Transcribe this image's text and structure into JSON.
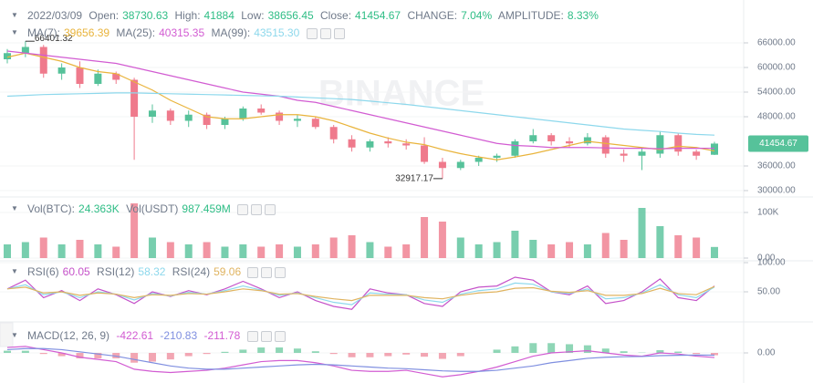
{
  "header": {
    "date": "2022/03/09",
    "open_label": "Open:",
    "high_label": "High:",
    "low_label": "Low:",
    "close_label": "Close:",
    "change_label": "CHANGE:",
    "change": "7.04%",
    "amplitude_label": "AMPLITUDE:",
    "amplitude": "8.33%"
  },
  "chart_data": [
    {
      "type": "candlestick",
      "watermark": "BINANCE",
      "up_color": "#56c29a",
      "down_color": "#ef7a8c",
      "open": [
        62000,
        63500,
        65000,
        58500,
        60000,
        56000,
        58500,
        57000,
        48000,
        49500,
        47000,
        48500,
        46000,
        47500,
        50000,
        49000,
        47000,
        47500,
        45500,
        42500,
        40500,
        42000,
        41500,
        41000,
        37000,
        35500,
        37000,
        38000,
        38500,
        42000,
        43500,
        42000,
        41500,
        43000,
        39000,
        38500,
        39000,
        43500,
        39500,
        38730.63
      ],
      "high": [
        64500,
        66401.32,
        65500,
        61000,
        61500,
        59500,
        59000,
        57500,
        51000,
        50000,
        49500,
        49000,
        48000,
        50500,
        51000,
        49500,
        48500,
        48000,
        46000,
        43500,
        42500,
        43000,
        42500,
        43000,
        38000,
        37500,
        38500,
        39000,
        42500,
        45000,
        44000,
        43000,
        44000,
        43500,
        40000,
        40500,
        44500,
        44000,
        40000,
        41884
      ],
      "low": [
        61000,
        62500,
        57500,
        57000,
        55000,
        55500,
        56000,
        37500,
        46500,
        46000,
        45500,
        45000,
        45000,
        47000,
        48500,
        46000,
        45500,
        45000,
        41500,
        39500,
        39500,
        40500,
        40000,
        36500,
        32917.17,
        35000,
        36000,
        37000,
        38000,
        41500,
        41000,
        40500,
        41000,
        38000,
        37000,
        35000,
        38000,
        38500,
        37500,
        38656.45
      ],
      "close": [
        63500,
        65000,
        58500,
        60000,
        56000,
        58500,
        57000,
        48000,
        49500,
        47000,
        48500,
        46000,
        47500,
        50000,
        49000,
        47000,
        47500,
        45500,
        42500,
        40500,
        42000,
        41500,
        41000,
        37000,
        35500,
        37000,
        38000,
        38500,
        42000,
        43500,
        42000,
        41500,
        43000,
        39000,
        38500,
        39500,
        43500,
        39500,
        38500,
        41454.67
      ],
      "ylim": [
        28667,
        74222
      ],
      "yticks": [
        {
          "value": 66000,
          "label": "66000.00"
        },
        {
          "value": 60000,
          "label": "60000.00"
        },
        {
          "value": 54000,
          "label": "54000.00"
        },
        {
          "value": 48000,
          "label": "48000.00"
        },
        {
          "value": 36000,
          "label": "36000.00"
        },
        {
          "value": 30000,
          "label": "30000.00"
        }
      ],
      "series": [
        {
          "name": "MA(7):",
          "color": "#e9b43c",
          "value_label": "39656.39",
          "values": [
            62500,
            63500,
            62500,
            61500,
            60000,
            59000,
            58500,
            56500,
            54500,
            52000,
            50000,
            48000,
            47500,
            47500,
            48000,
            48500,
            48500,
            48000,
            47000,
            45500,
            44000,
            42800,
            41800,
            41200,
            40000,
            39000,
            38200,
            37500,
            38200,
            39000,
            40000,
            41000,
            42000,
            41500,
            41000,
            40500,
            40000,
            40800,
            40500,
            39656.39
          ]
        },
        {
          "name": "MA(25):",
          "color": "#d25cd2",
          "value_label": "40315.35",
          "values": [
            64000,
            63500,
            63000,
            62500,
            62000,
            61500,
            61000,
            60000,
            59000,
            58000,
            57000,
            56000,
            55000,
            54000,
            53500,
            53000,
            52000,
            51500,
            50500,
            49500,
            48500,
            47500,
            46500,
            45500,
            44500,
            43500,
            42500,
            41500,
            41000,
            40800,
            40500,
            40500,
            40500,
            40400,
            40300,
            40300,
            40200,
            40300,
            40300,
            40315.35
          ]
        },
        {
          "name": "MA(99):",
          "color": "#8dd8ec",
          "value_label": "43515.30",
          "values": [
            53000,
            53200,
            53400,
            53500,
            53600,
            53700,
            53800,
            53800,
            53700,
            53600,
            53500,
            53400,
            53300,
            53200,
            53100,
            53000,
            52800,
            52600,
            52400,
            52200,
            51800,
            51400,
            51000,
            50500,
            50000,
            49500,
            49000,
            48500,
            48000,
            47500,
            47000,
            46500,
            46000,
            45500,
            45000,
            44700,
            44400,
            44000,
            43700,
            43515.3
          ]
        }
      ]
    },
    {
      "type": "bar",
      "name": "Vol(BTC):",
      "value_label": "24.363K",
      "extra_name": "Vol(USDT)",
      "extra_value": "987.459M",
      "values": [
        30000,
        35000,
        45000,
        30000,
        40000,
        30000,
        25000,
        120000,
        45000,
        35000,
        30000,
        35000,
        25000,
        30000,
        25000,
        30000,
        25000,
        30000,
        45000,
        50000,
        35000,
        25000,
        30000,
        90000,
        80000,
        45000,
        30000,
        35000,
        60000,
        40000,
        30000,
        35000,
        30000,
        55000,
        40000,
        110000,
        70000,
        50000,
        45000,
        24363
      ],
      "ylim": [
        0,
        126000
      ],
      "yticks": [
        {
          "value": 100000,
          "label": "100K"
        },
        {
          "value": 0,
          "label": "0.00"
        }
      ]
    },
    {
      "type": "line",
      "ylim": [
        0,
        100
      ],
      "yticks": [
        {
          "value": 100,
          "label": "100.00"
        },
        {
          "value": 50,
          "label": "50.00"
        }
      ],
      "series": [
        {
          "name": "RSI(6)",
          "color": "#c552c9",
          "values": [
            55,
            70,
            40,
            52,
            35,
            55,
            45,
            30,
            50,
            42,
            52,
            45,
            55,
            68,
            55,
            40,
            50,
            35,
            25,
            20,
            55,
            48,
            45,
            30,
            25,
            50,
            58,
            60,
            75,
            70,
            50,
            45,
            60,
            30,
            35,
            50,
            72,
            40,
            35,
            60.05
          ]
        },
        {
          "name": "RSI(12)",
          "color": "#8dd8ec",
          "values": [
            55,
            62,
            45,
            50,
            40,
            50,
            46,
            36,
            47,
            43,
            49,
            46,
            52,
            60,
            53,
            44,
            48,
            40,
            32,
            28,
            48,
            46,
            45,
            36,
            32,
            46,
            52,
            55,
            65,
            63,
            50,
            47,
            55,
            38,
            40,
            48,
            62,
            45,
            40,
            58.32
          ]
        },
        {
          "name": "RSI(24)",
          "color": "#e0b460",
          "values": [
            55,
            58,
            48,
            50,
            44,
            48,
            46,
            40,
            45,
            44,
            47,
            46,
            50,
            55,
            52,
            46,
            47,
            42,
            38,
            35,
            44,
            44,
            44,
            40,
            38,
            44,
            48,
            50,
            56,
            57,
            51,
            49,
            52,
            44,
            44,
            47,
            56,
            47,
            45,
            59.06
          ]
        }
      ]
    },
    {
      "type": "macd",
      "name": "MACD(12, 26, 9)",
      "up_color": "#8fd6b6",
      "down_color": "#f2a6b3",
      "ylim": [
        -2600,
        2600
      ],
      "yticks": [
        {
          "value": 0,
          "label": "0.00"
        }
      ],
      "values": [
        200,
        200,
        -100,
        -300,
        -500,
        -500,
        -500,
        -900,
        -800,
        -600,
        -300,
        -100,
        100,
        300,
        500,
        500,
        400,
        150,
        -100,
        -400,
        -400,
        -300,
        -150,
        -350,
        -550,
        -300,
        0,
        300,
        600,
        900,
        900,
        800,
        700,
        400,
        150,
        30,
        250,
        120,
        -100,
        -211.78
      ],
      "series": [
        {
          "color": "#d25cd2",
          "values": [
            500,
            600,
            300,
            0,
            -400,
            -600,
            -800,
            -1500,
            -1700,
            -1800,
            -1700,
            -1600,
            -1400,
            -1100,
            -800,
            -700,
            -700,
            -900,
            -1200,
            -1600,
            -1700,
            -1700,
            -1600,
            -1900,
            -2200,
            -2000,
            -1700,
            -1300,
            -800,
            -300,
            0,
            100,
            200,
            0,
            -200,
            -300,
            0,
            -100,
            -300,
            -422.61
          ]
        },
        {
          "color": "#7f8fe0",
          "values": [
            300,
            400,
            400,
            300,
            100,
            -100,
            -300,
            -600,
            -900,
            -1200,
            -1400,
            -1500,
            -1500,
            -1400,
            -1300,
            -1200,
            -1100,
            -1050,
            -1100,
            -1200,
            -1300,
            -1400,
            -1450,
            -1550,
            -1650,
            -1700,
            -1700,
            -1600,
            -1400,
            -1200,
            -900,
            -700,
            -500,
            -400,
            -350,
            -330,
            -250,
            -220,
            -200,
            -210.83
          ]
        }
      ]
    }
  ]
}
